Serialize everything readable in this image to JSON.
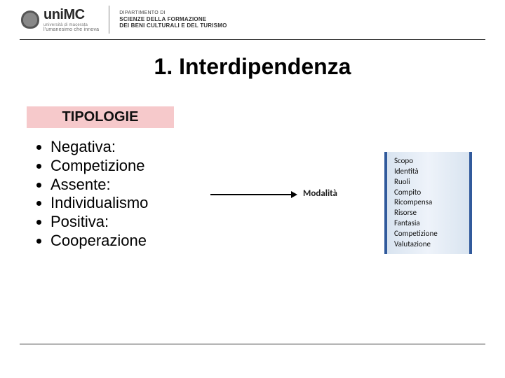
{
  "header": {
    "university": "uniMC",
    "university_sub": "università di macerata",
    "tagline": "l'umanesimo che innova",
    "dept_label": "DIPARTIMENTO DI",
    "dept_line1": "SCIENZE DELLA FORMAZIONE",
    "dept_line2": "DEI BENI CULTURALI E DEL TURISMO"
  },
  "title": "1. Interdipendenza",
  "section_label": "TIPOLOGIE",
  "bullets": [
    "Negativa:",
    "Competizione",
    "Assente:",
    "Individualismo",
    "Positiva:",
    "Cooperazione"
  ],
  "arrow_label": "Modalità",
  "side_items": [
    "Scopo",
    "Identità",
    "Ruoli",
    "Compito",
    "Ricompensa",
    "Risorse",
    "Fantasia",
    "Competizione",
    "Valutazione"
  ],
  "colors": {
    "section_bg": "#f6c9cb",
    "box_border": "#315a9c",
    "box_bg_from": "#d9e4f0",
    "box_bg_to": "#eef3fa"
  }
}
